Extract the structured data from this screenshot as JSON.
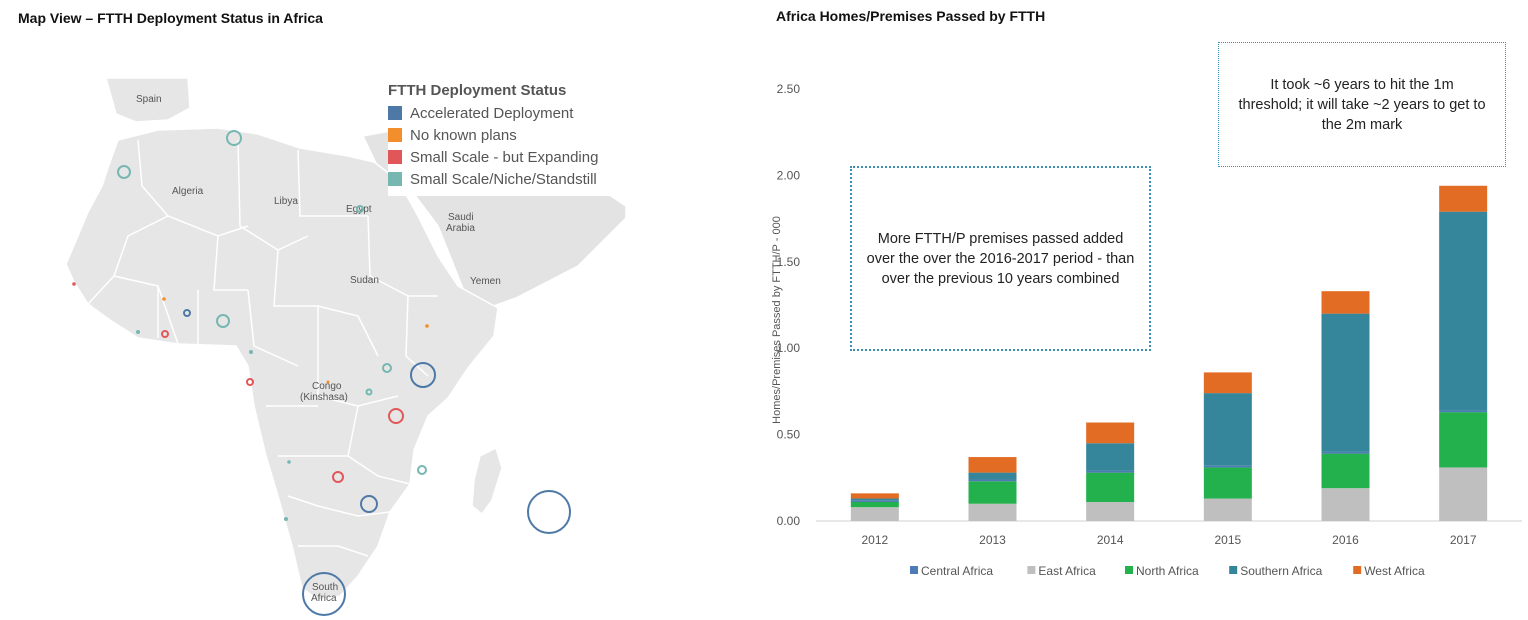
{
  "map": {
    "title": "Map View –  FTTH Deployment Status in Africa",
    "country_labels": {
      "spain": "Spain",
      "algeria": "Algeria",
      "libya": "Libya",
      "egypt": "Egypt",
      "saudi_line1": "Saudi",
      "saudi_line2": "Arabia",
      "sudan": "Sudan",
      "yemen": "Yemen",
      "congo_line1": "Congo",
      "congo_line2": "(Kinshasa)",
      "sa_line1": "South",
      "sa_line2": "Africa"
    },
    "legend": {
      "title": "FTTH Deployment Status",
      "items": [
        {
          "label": "Accelerated Deployment",
          "color": "#4e79a7"
        },
        {
          "label": "No known plans",
          "color": "#f28e2b"
        },
        {
          "label": "Small Scale - but Expanding",
          "color": "#e15759"
        },
        {
          "label": "Small Scale/Niche/Standstill",
          "color": "#76b7b2"
        }
      ]
    }
  },
  "chart_data": {
    "type": "bar",
    "stacked": true,
    "title": "Africa Homes/Premises Passed by FTTH",
    "ylabel": "Homes/Premises Passed by FTTH/P - 000",
    "xlabel": "",
    "categories": [
      "2012",
      "2013",
      "2014",
      "2015",
      "2016",
      "2017"
    ],
    "ylim": [
      0,
      2.5
    ],
    "yticks": [
      "0.00",
      "0.50",
      "1.00",
      "1.50",
      "2.00",
      "2.50"
    ],
    "series": [
      {
        "name": "East Africa",
        "color": "#bfbfbf",
        "values": [
          0.08,
          0.1,
          0.11,
          0.13,
          0.19,
          0.31
        ]
      },
      {
        "name": "North Africa",
        "color": "#22b14c",
        "values": [
          0.03,
          0.13,
          0.17,
          0.18,
          0.2,
          0.32
        ]
      },
      {
        "name": "Central Africa",
        "color": "#4e7bb5",
        "values": [
          0.01,
          0.01,
          0.01,
          0.01,
          0.01,
          0.01
        ]
      },
      {
        "name": "Southern Africa",
        "color": "#35859b",
        "values": [
          0.01,
          0.04,
          0.16,
          0.42,
          0.8,
          1.15
        ]
      },
      {
        "name": "West Africa",
        "color": "#e36c25",
        "values": [
          0.03,
          0.09,
          0.12,
          0.12,
          0.13,
          0.15
        ]
      }
    ],
    "legend_order": [
      "Central Africa",
      "East Africa",
      "North Africa",
      "Southern Africa",
      "West Africa"
    ],
    "legend_position": "bottom",
    "grid": false,
    "annotations": [
      "More FTTH/P premises passed added over the over the 2016-2017 period - than over the previous 10 years combined",
      "It took ~6 years to hit the 1m threshold; it will take ~2 years to get to the 2m mark"
    ]
  }
}
